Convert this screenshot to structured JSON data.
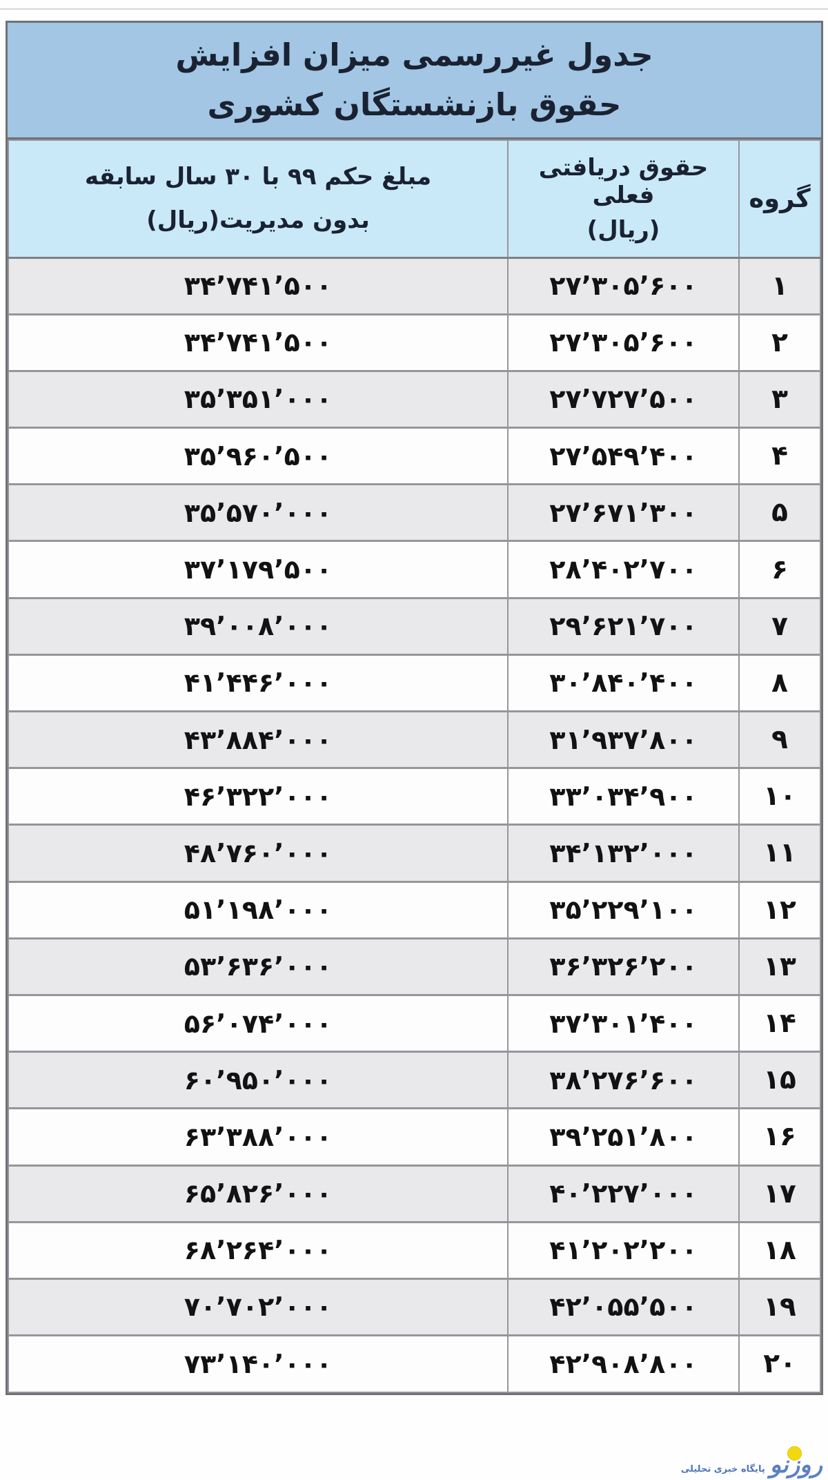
{
  "title": {
    "line1": "جدول غیررسمی میزان افزایش",
    "line2": "حقوق بازنشستگان کشوری"
  },
  "header": {
    "group": "گروه",
    "current_line1": "حقوق دریافتی فعلی",
    "current_line2": "(ریال)",
    "decree_line1": "مبلغ حکم ۹۹ با ۳۰ سال سابقه",
    "decree_line2": "بدون مدیریت(ریال)"
  },
  "rows": [
    {
      "group": "۱",
      "current": "۲۷٬۳۰۵٬۶۰۰",
      "decree": "۳۴٬۷۴۱٬۵۰۰"
    },
    {
      "group": "۲",
      "current": "۲۷٬۳۰۵٬۶۰۰",
      "decree": "۳۴٬۷۴۱٬۵۰۰"
    },
    {
      "group": "۳",
      "current": "۲۷٬۷۲۷٬۵۰۰",
      "decree": "۳۵٬۳۵۱٬۰۰۰"
    },
    {
      "group": "۴",
      "current": "۲۷٬۵۴۹٬۴۰۰",
      "decree": "۳۵٬۹۶۰٬۵۰۰"
    },
    {
      "group": "۵",
      "current": "۲۷٬۶۷۱٬۳۰۰",
      "decree": "۳۵٬۵۷۰٬۰۰۰"
    },
    {
      "group": "۶",
      "current": "۲۸٬۴۰۲٬۷۰۰",
      "decree": "۳۷٬۱۷۹٬۵۰۰"
    },
    {
      "group": "۷",
      "current": "۲۹٬۶۲۱٬۷۰۰",
      "decree": "۳۹٬۰۰۸٬۰۰۰"
    },
    {
      "group": "۸",
      "current": "۳۰٬۸۴۰٬۴۰۰",
      "decree": "۴۱٬۴۴۶٬۰۰۰"
    },
    {
      "group": "۹",
      "current": "۳۱٬۹۳۷٬۸۰۰",
      "decree": "۴۳٬۸۸۴٬۰۰۰"
    },
    {
      "group": "۱۰",
      "current": "۳۳٬۰۳۴٬۹۰۰",
      "decree": "۴۶٬۳۲۲٬۰۰۰"
    },
    {
      "group": "۱۱",
      "current": "۳۴٬۱۳۲٬۰۰۰",
      "decree": "۴۸٬۷۶۰٬۰۰۰"
    },
    {
      "group": "۱۲",
      "current": "۳۵٬۲۲۹٬۱۰۰",
      "decree": "۵۱٬۱۹۸٬۰۰۰"
    },
    {
      "group": "۱۳",
      "current": "۳۶٬۳۲۶٬۲۰۰",
      "decree": "۵۳٬۶۳۶٬۰۰۰"
    },
    {
      "group": "۱۴",
      "current": "۳۷٬۳۰۱٬۴۰۰",
      "decree": "۵۶٬۰۷۴٬۰۰۰"
    },
    {
      "group": "۱۵",
      "current": "۳۸٬۲۷۶٬۶۰۰",
      "decree": "۶۰٬۹۵۰٬۰۰۰"
    },
    {
      "group": "۱۶",
      "current": "۳۹٬۲۵۱٬۸۰۰",
      "decree": "۶۳٬۳۸۸٬۰۰۰"
    },
    {
      "group": "۱۷",
      "current": "۴۰٬۲۲۷٬۰۰۰",
      "decree": "۶۵٬۸۲۶٬۰۰۰"
    },
    {
      "group": "۱۸",
      "current": "۴۱٬۲۰۲٬۲۰۰",
      "decree": "۶۸٬۲۶۴٬۰۰۰"
    },
    {
      "group": "۱۹",
      "current": "۴۲٬۰۵۵٬۵۰۰",
      "decree": "۷۰٬۷۰۲٬۰۰۰"
    },
    {
      "group": "۲۰",
      "current": "۴۲٬۹۰۸٬۸۰۰",
      "decree": "۷۳٬۱۴۰٬۰۰۰"
    }
  ],
  "watermark": {
    "logo": "روزنو",
    "tagline": "پایگاه خبری تحلیلی"
  },
  "colors": {
    "title_bg": "#a2c6e4",
    "header_bg": "#c9e9f8",
    "stripe_bg": "#e9e9ec",
    "row_bg": "#fdfdfe",
    "grid_border": "#96969a",
    "outer_border": "#6e7276",
    "text": "#121212",
    "logo_blue": "#5c80c6",
    "logo_yellow": "#f2d90e"
  },
  "chart_data": {
    "type": "table",
    "title": "جدول غیررسمی میزان افزایش حقوق بازنشستگان کشوری",
    "columns": [
      "گروه",
      "حقوق دریافتی فعلی (ریال)",
      "مبلغ حکم ۹۹ با ۳۰ سال سابقه بدون مدیریت (ریال)"
    ],
    "rows": [
      [
        1,
        27305600,
        34741500
      ],
      [
        2,
        27305600,
        34741500
      ],
      [
        3,
        27727500,
        35351000
      ],
      [
        4,
        27549400,
        35960500
      ],
      [
        5,
        27671300,
        35570000
      ],
      [
        6,
        28402700,
        37179500
      ],
      [
        7,
        29621700,
        39008000
      ],
      [
        8,
        30840400,
        41446000
      ],
      [
        9,
        31937800,
        43884000
      ],
      [
        10,
        33034900,
        46322000
      ],
      [
        11,
        34132000,
        48760000
      ],
      [
        12,
        35229100,
        51198000
      ],
      [
        13,
        36326200,
        53636000
      ],
      [
        14,
        37301400,
        56074000
      ],
      [
        15,
        38276600,
        60950000
      ],
      [
        16,
        39251800,
        63388000
      ],
      [
        17,
        40227000,
        65826000
      ],
      [
        18,
        41202200,
        68264000
      ],
      [
        19,
        42055500,
        70702000
      ],
      [
        20,
        42908800,
        73140000
      ]
    ]
  }
}
